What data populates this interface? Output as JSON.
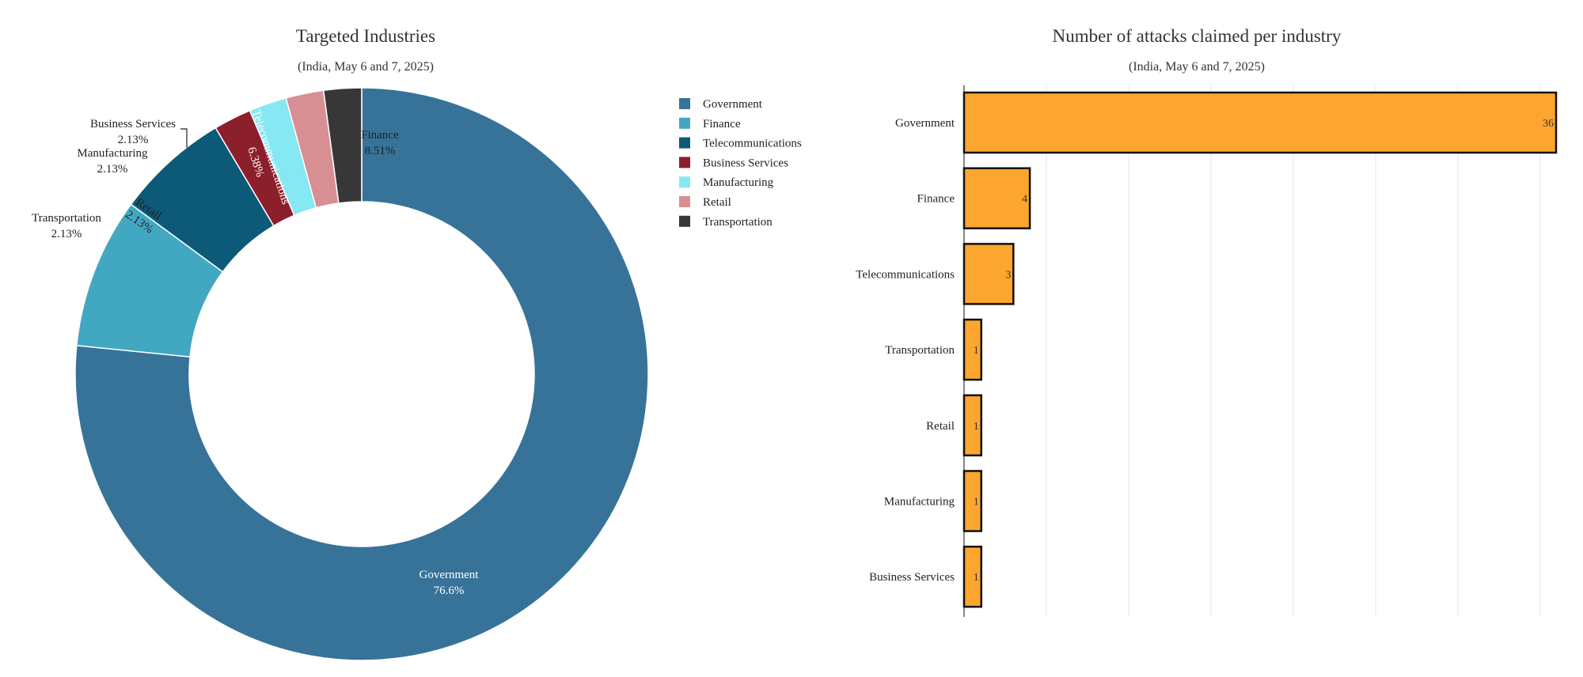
{
  "chart_data": [
    {
      "type": "pie",
      "title": "Targeted Industries",
      "subtitle": "(India, May 6 and 7, 2025)",
      "slices": [
        {
          "label": "Government",
          "value": 76.6,
          "pct_label": "76.6%",
          "color": "#377399"
        },
        {
          "label": "Finance",
          "value": 8.51,
          "pct_label": "8.51%",
          "color": "#42a8c1"
        },
        {
          "label": "Telecommunications",
          "value": 6.38,
          "pct_label": "6.38%",
          "color": "#0d5a78"
        },
        {
          "label": "Business Services",
          "value": 2.13,
          "pct_label": "2.13%",
          "color": "#8c1f2c"
        },
        {
          "label": "Manufacturing",
          "value": 2.13,
          "pct_label": "2.13%",
          "color": "#86e8f2"
        },
        {
          "label": "Retail",
          "value": 2.13,
          "pct_label": "2.13%",
          "color": "#d88f93"
        },
        {
          "label": "Transportation",
          "value": 2.13,
          "pct_label": "2.13%",
          "color": "#373737"
        }
      ],
      "legend": [
        "Government",
        "Finance",
        "Telecommunications",
        "Business Services",
        "Manufacturing",
        "Retail",
        "Transportation"
      ],
      "legend_placement": "right",
      "hole": "donut"
    },
    {
      "type": "bar",
      "orientation": "horizontal",
      "title": "Number of attacks claimed per industry",
      "subtitle": "(India, May 6 and 7, 2025)",
      "categories": [
        "Government",
        "Finance",
        "Telecommunications",
        "Transportation",
        "Retail",
        "Manufacturing",
        "Business Services"
      ],
      "values": [
        36,
        4,
        3,
        1,
        1,
        1,
        1
      ],
      "xlim": [
        0,
        36
      ],
      "grid": true,
      "bar_color": "#fca630",
      "bar_border": "#111111"
    }
  ]
}
